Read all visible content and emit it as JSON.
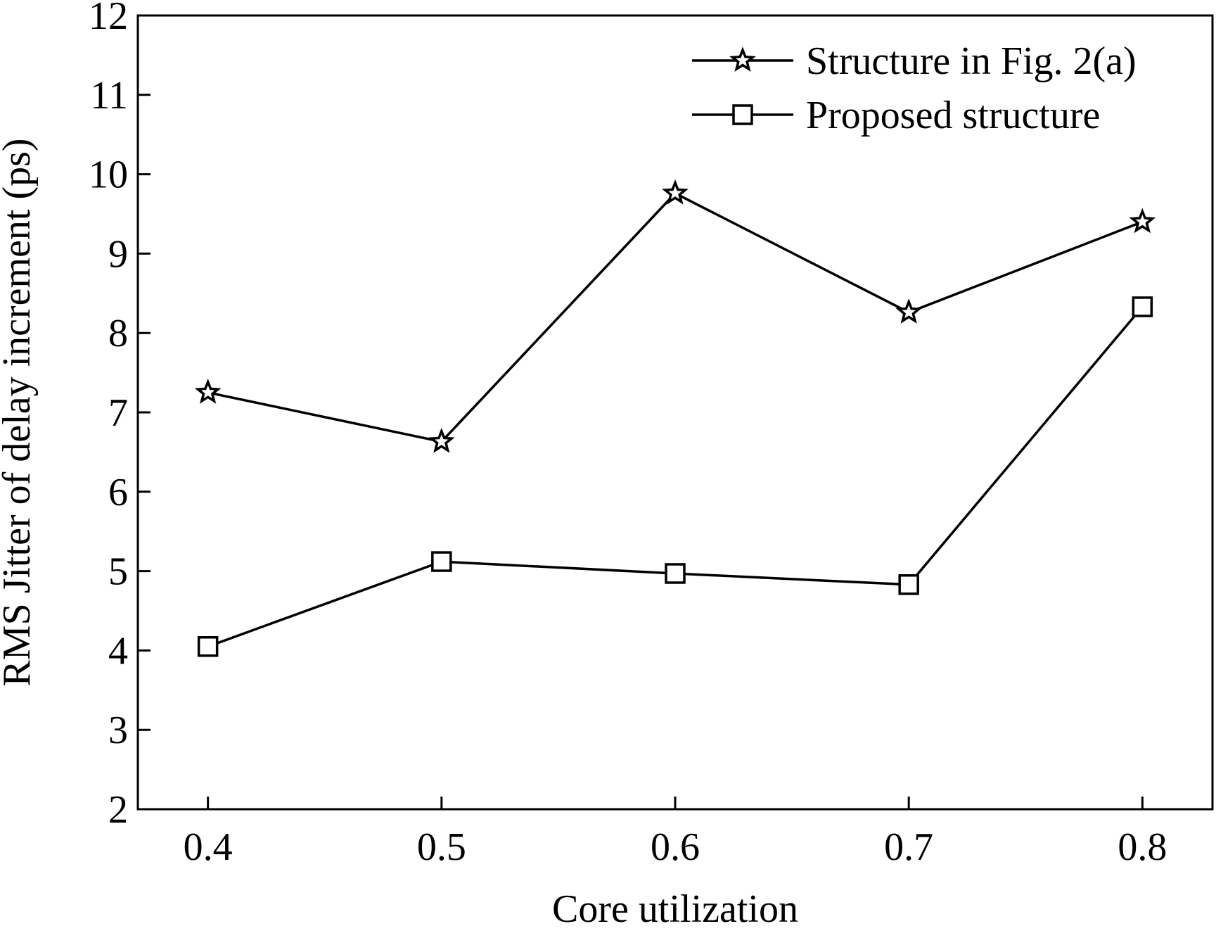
{
  "chart_data": {
    "type": "line",
    "xlabel": "Core utilization",
    "ylabel": "RMS Jitter of delay increment (ps)",
    "xlim": [
      0.37,
      0.83
    ],
    "ylim": [
      2,
      12
    ],
    "xticks": [
      0.4,
      0.5,
      0.6,
      0.7,
      0.8
    ],
    "xtick_labels": [
      "0.4",
      "0.5",
      "0.6",
      "0.7",
      "0.8"
    ],
    "yticks": [
      2,
      3,
      4,
      5,
      6,
      7,
      8,
      9,
      10,
      11,
      12
    ],
    "ytick_labels": [
      "2",
      "3",
      "4",
      "5",
      "6",
      "7",
      "8",
      "9",
      "10",
      "11",
      "12"
    ],
    "grid": false,
    "legend_position": "top-right",
    "x": [
      0.4,
      0.5,
      0.6,
      0.7,
      0.8
    ],
    "series": [
      {
        "name": "Structure in Fig. 2(a)",
        "marker": "star",
        "color": "#000000",
        "values": [
          7.25,
          6.63,
          9.76,
          8.26,
          9.4
        ]
      },
      {
        "name": "Proposed structure",
        "marker": "square",
        "color": "#000000",
        "values": [
          4.05,
          5.12,
          4.97,
          4.83,
          8.33
        ]
      }
    ]
  }
}
